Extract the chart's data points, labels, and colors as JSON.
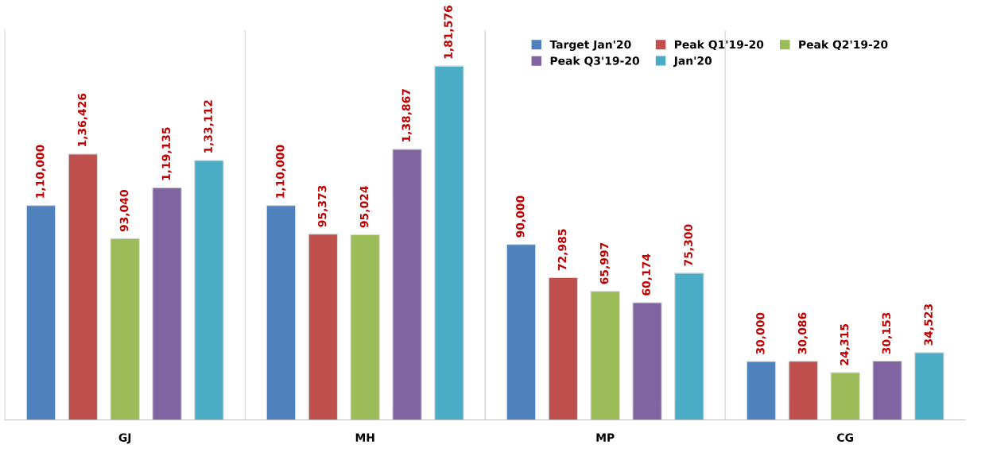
{
  "chart_data": {
    "type": "bar",
    "categories": [
      "GJ",
      "MH",
      "MP",
      "CG"
    ],
    "series": [
      {
        "name": "Target Jan'20",
        "color": "#4f81bd",
        "values": [
          110000,
          110000,
          90000,
          30000
        ],
        "value_labels": [
          "1,10,000",
          "1,10,000",
          "90,000",
          "30,000"
        ]
      },
      {
        "name": "Peak Q1'19-20",
        "color": "#c0504d",
        "values": [
          136426,
          95373,
          72985,
          30086
        ],
        "value_labels": [
          "1,36,426",
          "95,373",
          "72,985",
          "30,086"
        ]
      },
      {
        "name": "Peak Q2'19-20",
        "color": "#9bbb59",
        "values": [
          93040,
          95024,
          65997,
          24315
        ],
        "value_labels": [
          "93,040",
          "95,024",
          "65,997",
          "24,315"
        ]
      },
      {
        "name": "Peak Q3'19-20",
        "color": "#8064a2",
        "values": [
          119135,
          138867,
          60174,
          30153
        ],
        "value_labels": [
          "1,19,135",
          "1,38,867",
          "60,174",
          "30,153"
        ]
      },
      {
        "name": "Jan'20",
        "color": "#4bacc6",
        "values": [
          133112,
          181576,
          75300,
          34523
        ],
        "value_labels": [
          "1,33,112",
          "1,81,576",
          "75,300",
          "34,523"
        ]
      }
    ],
    "ylim": [
      0,
      200000
    ],
    "grid": "x",
    "legend": "top right",
    "tick_labels": "x"
  }
}
